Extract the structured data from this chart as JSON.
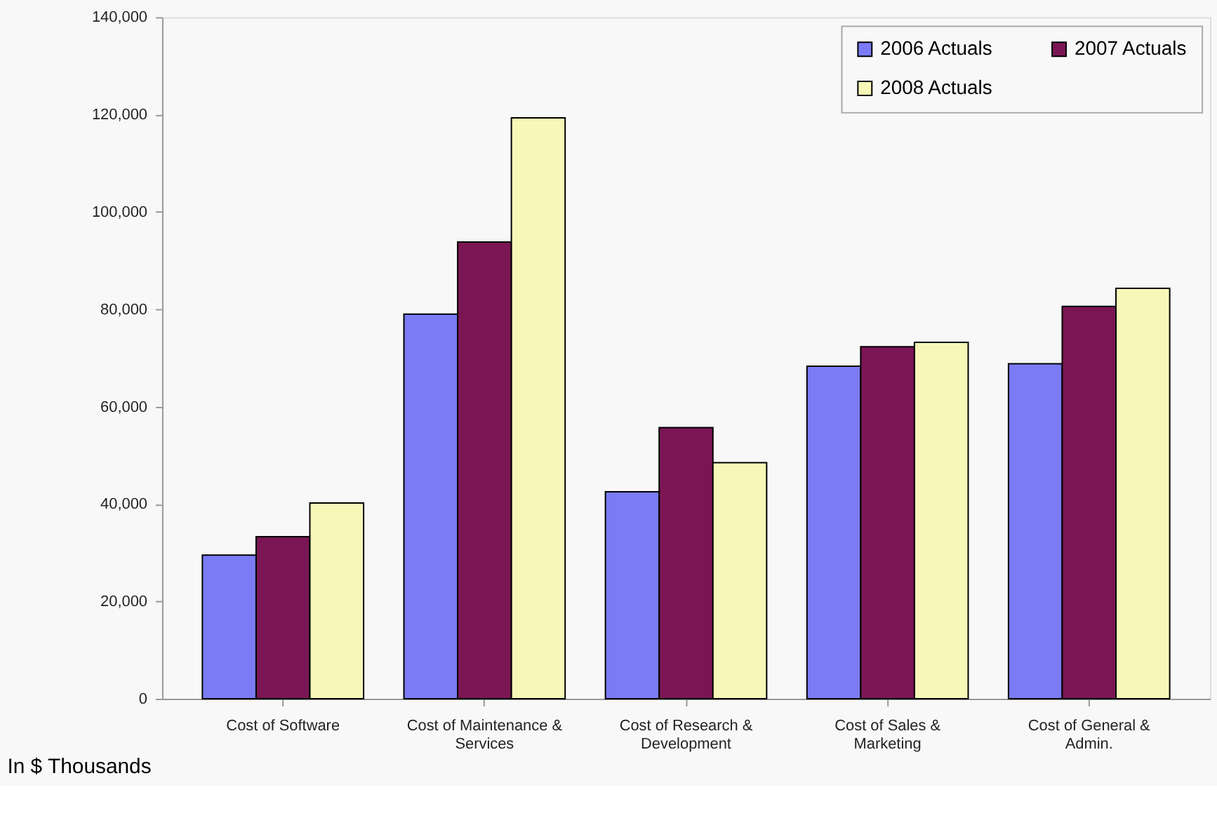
{
  "chart_data": {
    "type": "bar",
    "categories": [
      "Cost of Software",
      "Cost of Maintenance &\nServices",
      "Cost of Research &\nDevelopment",
      "Cost of Sales &\nMarketing",
      "Cost of General &\nAdmin."
    ],
    "series": [
      {
        "name": "2006 Actuals",
        "color": "#7b7bf5",
        "values": [
          29500,
          79000,
          42500,
          68300,
          68800
        ]
      },
      {
        "name": "2007 Actuals",
        "color": "#7b1654",
        "values": [
          33300,
          93800,
          55700,
          72300,
          80600
        ]
      },
      {
        "name": "2008 Actuals",
        "color": "#f7f7b8",
        "values": [
          40200,
          119300,
          48500,
          73200,
          84300
        ]
      }
    ],
    "ylim": [
      0,
      140000
    ],
    "yticks": [
      0,
      {
        "value": 20000,
        "label": "20,000"
      },
      {
        "value": 40000,
        "label": "40,000"
      },
      {
        "value": 60000,
        "label": "60,000"
      },
      {
        "value": 80000,
        "label": "80,000"
      },
      {
        "value": 100000,
        "label": "100,000"
      },
      {
        "value": 120000,
        "label": "120,000"
      },
      {
        "value": 140000,
        "label": "140,000"
      }
    ],
    "grid": false,
    "legend": "top right",
    "annotations": [
      "In $ Thousands"
    ]
  }
}
